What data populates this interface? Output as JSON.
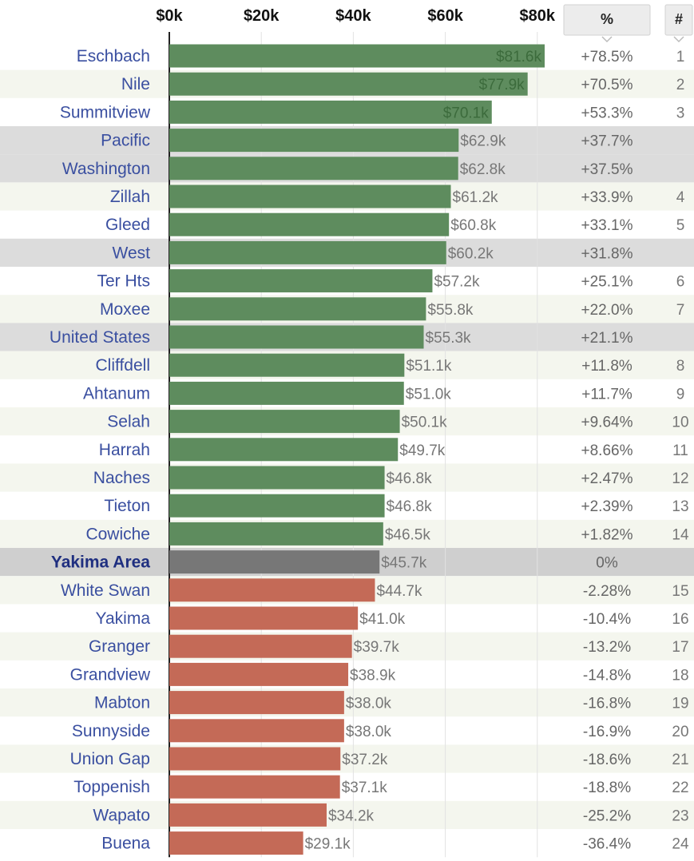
{
  "colors": {
    "above": "#5e8c5e",
    "below": "#c46a57",
    "baseline": "#777777",
    "reference_band": "#dcdcdc",
    "baseline_band": "#cfcfcf",
    "label": "#3a4fa0",
    "grid": "#e2e2e2"
  },
  "chart_data": {
    "type": "bar",
    "orientation": "horizontal",
    "xlim": [
      0,
      85000
    ],
    "x_ticks": [
      "$0k",
      "$20k",
      "$40k",
      "$60k",
      "$80k"
    ],
    "x_tick_values": [
      0,
      20000,
      40000,
      60000,
      80000
    ],
    "grid": true,
    "columns": {
      "percent": "%",
      "rank": "#"
    },
    "rows": [
      {
        "name": "Eschbach",
        "value": 81600,
        "value_label": "$81.6k",
        "pct": "+78.5%",
        "rank": "1",
        "kind": "above"
      },
      {
        "name": "Nile",
        "value": 77900,
        "value_label": "$77.9k",
        "pct": "+70.5%",
        "rank": "2",
        "kind": "above"
      },
      {
        "name": "Summitview",
        "value": 70100,
        "value_label": "$70.1k",
        "pct": "+53.3%",
        "rank": "3",
        "kind": "above"
      },
      {
        "name": "Pacific",
        "value": 62900,
        "value_label": "$62.9k",
        "pct": "+37.7%",
        "rank": "",
        "kind": "above",
        "reference": true
      },
      {
        "name": "Washington",
        "value": 62800,
        "value_label": "$62.8k",
        "pct": "+37.5%",
        "rank": "",
        "kind": "above",
        "reference": true
      },
      {
        "name": "Zillah",
        "value": 61200,
        "value_label": "$61.2k",
        "pct": "+33.9%",
        "rank": "4",
        "kind": "above"
      },
      {
        "name": "Gleed",
        "value": 60800,
        "value_label": "$60.8k",
        "pct": "+33.1%",
        "rank": "5",
        "kind": "above"
      },
      {
        "name": "West",
        "value": 60200,
        "value_label": "$60.2k",
        "pct": "+31.8%",
        "rank": "",
        "kind": "above",
        "reference": true
      },
      {
        "name": "Ter Hts",
        "value": 57200,
        "value_label": "$57.2k",
        "pct": "+25.1%",
        "rank": "6",
        "kind": "above"
      },
      {
        "name": "Moxee",
        "value": 55800,
        "value_label": "$55.8k",
        "pct": "+22.0%",
        "rank": "7",
        "kind": "above"
      },
      {
        "name": "United States",
        "value": 55300,
        "value_label": "$55.3k",
        "pct": "+21.1%",
        "rank": "",
        "kind": "above",
        "reference": true
      },
      {
        "name": "Cliffdell",
        "value": 51100,
        "value_label": "$51.1k",
        "pct": "+11.8%",
        "rank": "8",
        "kind": "above"
      },
      {
        "name": "Ahtanum",
        "value": 51000,
        "value_label": "$51.0k",
        "pct": "+11.7%",
        "rank": "9",
        "kind": "above"
      },
      {
        "name": "Selah",
        "value": 50100,
        "value_label": "$50.1k",
        "pct": "+9.64%",
        "rank": "10",
        "kind": "above"
      },
      {
        "name": "Harrah",
        "value": 49700,
        "value_label": "$49.7k",
        "pct": "+8.66%",
        "rank": "11",
        "kind": "above"
      },
      {
        "name": "Naches",
        "value": 46800,
        "value_label": "$46.8k",
        "pct": "+2.47%",
        "rank": "12",
        "kind": "above"
      },
      {
        "name": "Tieton",
        "value": 46800,
        "value_label": "$46.8k",
        "pct": "+2.39%",
        "rank": "13",
        "kind": "above"
      },
      {
        "name": "Cowiche",
        "value": 46500,
        "value_label": "$46.5k",
        "pct": "+1.82%",
        "rank": "14",
        "kind": "above"
      },
      {
        "name": "Yakima Area",
        "value": 45700,
        "value_label": "$45.7k",
        "pct": "0%",
        "rank": "",
        "kind": "baseline"
      },
      {
        "name": "White Swan",
        "value": 44700,
        "value_label": "$44.7k",
        "pct": "-2.28%",
        "rank": "15",
        "kind": "below"
      },
      {
        "name": "Yakima",
        "value": 41000,
        "value_label": "$41.0k",
        "pct": "-10.4%",
        "rank": "16",
        "kind": "below"
      },
      {
        "name": "Granger",
        "value": 39700,
        "value_label": "$39.7k",
        "pct": "-13.2%",
        "rank": "17",
        "kind": "below"
      },
      {
        "name": "Grandview",
        "value": 38900,
        "value_label": "$38.9k",
        "pct": "-14.8%",
        "rank": "18",
        "kind": "below"
      },
      {
        "name": "Mabton",
        "value": 38000,
        "value_label": "$38.0k",
        "pct": "-16.8%",
        "rank": "19",
        "kind": "below"
      },
      {
        "name": "Sunnyside",
        "value": 38000,
        "value_label": "$38.0k",
        "pct": "-16.9%",
        "rank": "20",
        "kind": "below"
      },
      {
        "name": "Union Gap",
        "value": 37200,
        "value_label": "$37.2k",
        "pct": "-18.6%",
        "rank": "21",
        "kind": "below"
      },
      {
        "name": "Toppenish",
        "value": 37100,
        "value_label": "$37.1k",
        "pct": "-18.8%",
        "rank": "22",
        "kind": "below"
      },
      {
        "name": "Wapato",
        "value": 34200,
        "value_label": "$34.2k",
        "pct": "-25.2%",
        "rank": "23",
        "kind": "below"
      },
      {
        "name": "Buena",
        "value": 29100,
        "value_label": "$29.1k",
        "pct": "-36.4%",
        "rank": "24",
        "kind": "below"
      }
    ]
  }
}
